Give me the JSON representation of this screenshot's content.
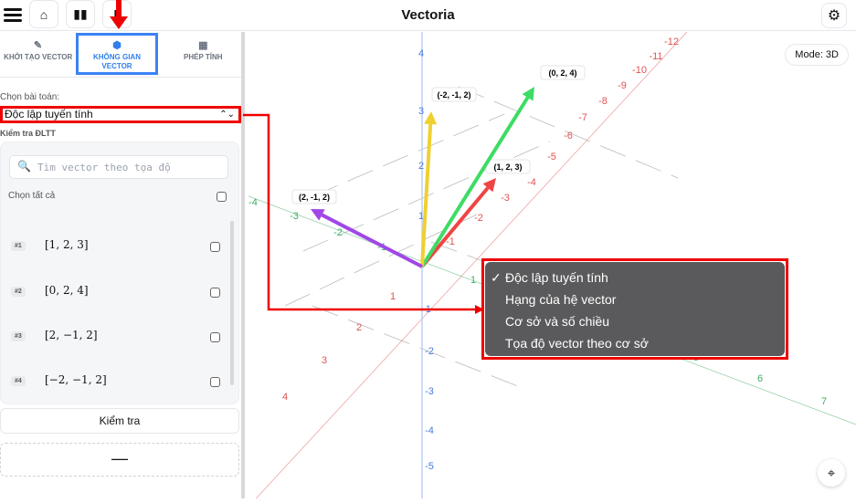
{
  "header": {
    "title": "Vectoria",
    "icons": [
      "menu-icon",
      "home-icon",
      "book-icon",
      "document-icon",
      "gear-icon"
    ]
  },
  "tabs": [
    {
      "label": "KHỞI TẠO VECTOR",
      "icon": "edit-icon"
    },
    {
      "label": "KHÔNG GIAN VECTOR",
      "icon": "cube-icon",
      "active": true
    },
    {
      "label": "PHÉP TÍNH",
      "icon": "calculator-icon"
    }
  ],
  "problem": {
    "label": "Chọn bài toán:",
    "selected": "Độc lập tuyến tính",
    "section": "Kiểm tra ĐLTT"
  },
  "search": {
    "placeholder": "Tìm vector theo tọa độ"
  },
  "select_all": "Chọn tất cả",
  "vectors": [
    {
      "id": "#1",
      "value": "[1, 2, 3]"
    },
    {
      "id": "#2",
      "value": "[0, 2, 4]"
    },
    {
      "id": "#3",
      "value": "[2, −1, 2]"
    },
    {
      "id": "#4",
      "value": "[−2, −1, 2]"
    }
  ],
  "check_button": "Kiểm tra",
  "result": "—",
  "mode": "Mode: 3D",
  "dropdown": {
    "options": [
      "Độc lập tuyến tính",
      "Hạng của hệ vector",
      "Cơ sở và số chiều",
      "Tọa độ vector theo cơ sở"
    ],
    "checked": 0
  },
  "scene": {
    "axis_colors": {
      "red": "#e05252",
      "green": "#3cae62",
      "blue": "#4a7be0"
    },
    "red_ticks": [
      "1",
      "2",
      "3",
      "4",
      "-1",
      "-2",
      "-3",
      "-4",
      "-5",
      "-6",
      "-7",
      "-8",
      "-9",
      "-10",
      "-11",
      "-12"
    ],
    "green_ticks": [
      "-4",
      "-3",
      "-2",
      "-1",
      "1",
      "5",
      "6",
      "7"
    ],
    "blue_ticks": [
      "4",
      "3",
      "2",
      "1",
      "-1",
      "-2",
      "-3",
      "-4",
      "-5"
    ],
    "vectors": [
      {
        "label": "(1, 2, 3)",
        "color": "#ef4444"
      },
      {
        "label": "(0, 2, 4)",
        "color": "#3ddc64"
      },
      {
        "label": "(-2, -1, 2)",
        "color": "#f0d030"
      },
      {
        "label": "(2, -1, 2)",
        "color": "#a047e8"
      }
    ]
  }
}
